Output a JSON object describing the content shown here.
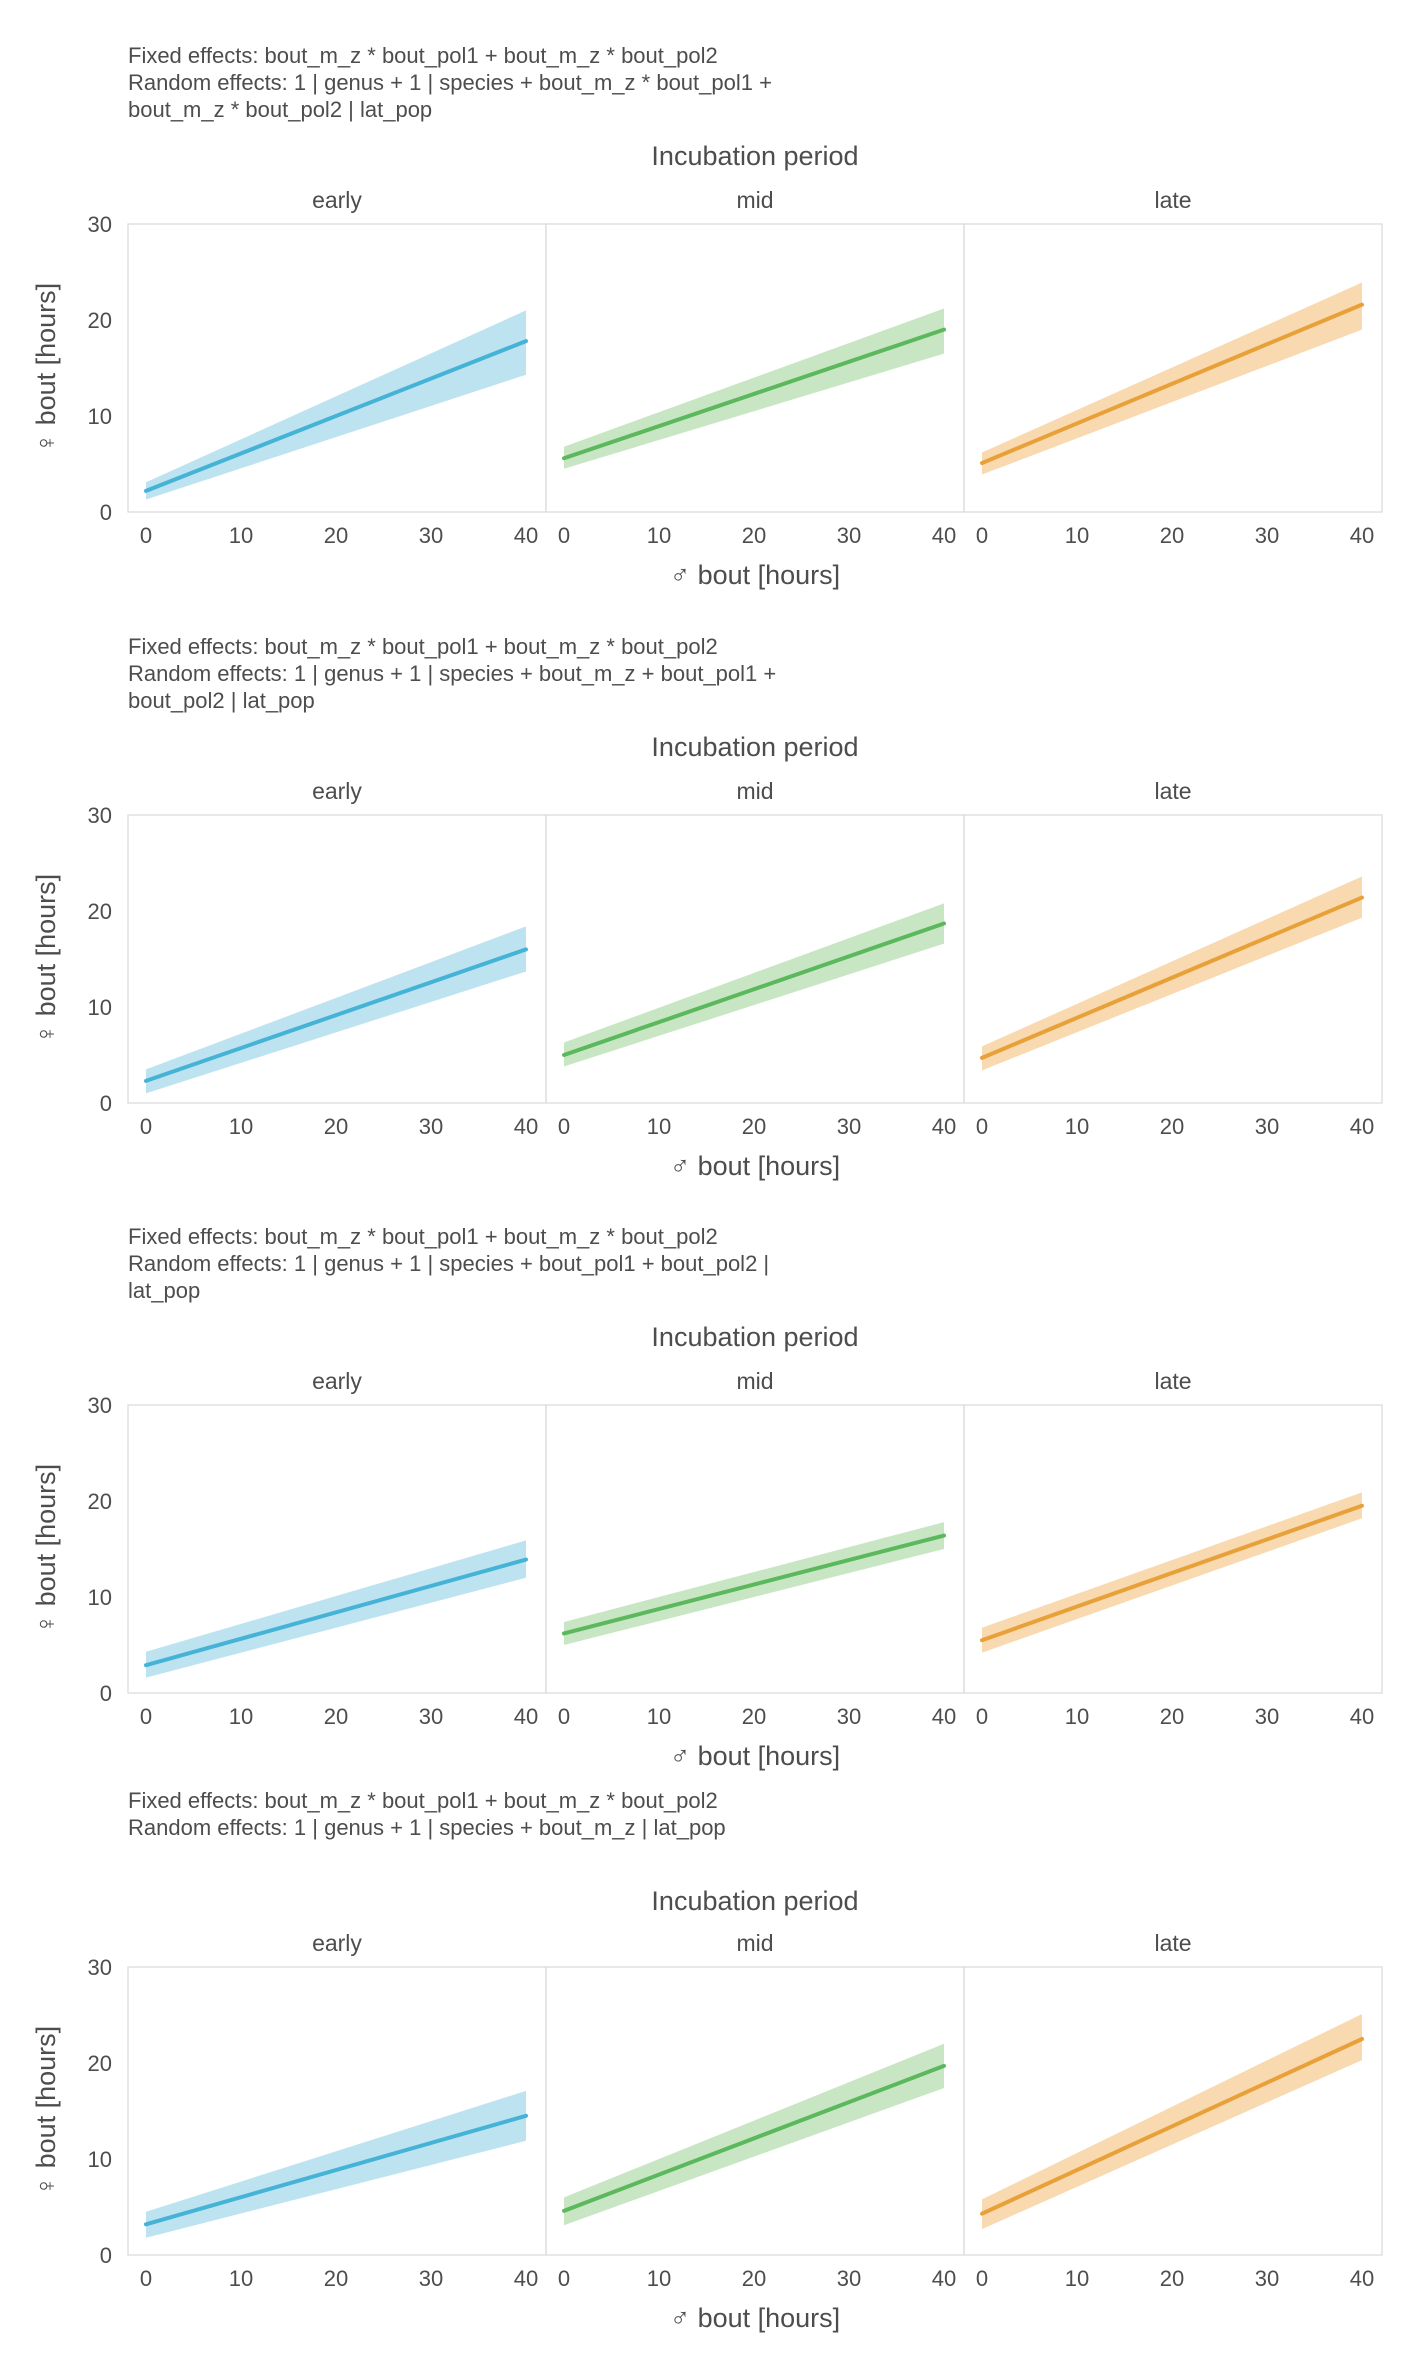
{
  "figure": {
    "colors": {
      "early": "#45b3d6",
      "mid": "#5cb85c",
      "late": "#e8a038",
      "early_band": "#bde3f1",
      "mid_band": "#c9e6c4",
      "late_band": "#f8d9b0",
      "text": "#4d4d4d",
      "grid_border": "#d9d9d9"
    }
  },
  "chart_data": [
    {
      "type": "line",
      "fixed_effects": "Fixed effects: bout_m_z * bout_pol1 + bout_m_z * bout_pol2",
      "random_effects_line1": "Random effects: 1 | genus + 1 | species + bout_m_z * bout_pol1 +",
      "random_effects_line2": "bout_m_z * bout_pol2 | lat_pop",
      "facet_title": "Incubation period",
      "xlabel": "♂ bout [hours]",
      "ylabel": "♀ bout [hours]",
      "xlim": [
        0,
        40
      ],
      "ylim": [
        0,
        30
      ],
      "xticks": [
        "0",
        "10",
        "20",
        "30",
        "40"
      ],
      "yticks": [
        "0",
        "10",
        "20",
        "30"
      ],
      "grid": false,
      "panels": [
        {
          "name": "early",
          "x": [
            0,
            40
          ],
          "y": [
            2.2,
            17.8
          ],
          "lower": [
            1.3,
            14.3
          ],
          "upper": [
            3.1,
            21.0
          ]
        },
        {
          "name": "mid",
          "x": [
            0,
            40
          ],
          "y": [
            5.6,
            19.0
          ],
          "lower": [
            4.5,
            16.5
          ],
          "upper": [
            6.8,
            21.2
          ]
        },
        {
          "name": "late",
          "x": [
            0,
            40
          ],
          "y": [
            5.1,
            21.6
          ],
          "lower": [
            3.9,
            19.0
          ],
          "upper": [
            6.2,
            23.9
          ]
        }
      ]
    },
    {
      "type": "line",
      "fixed_effects": "Fixed effects: bout_m_z * bout_pol1 + bout_m_z * bout_pol2",
      "random_effects_line1": "Random effects: 1 | genus + 1 | species + bout_m_z + bout_pol1 +",
      "random_effects_line2": "bout_pol2 | lat_pop",
      "facet_title": "Incubation period",
      "xlabel": "♂ bout [hours]",
      "ylabel": "♀ bout [hours]",
      "xlim": [
        0,
        40
      ],
      "ylim": [
        0,
        30
      ],
      "xticks": [
        "0",
        "10",
        "20",
        "30",
        "40"
      ],
      "yticks": [
        "0",
        "10",
        "20",
        "30"
      ],
      "grid": false,
      "panels": [
        {
          "name": "early",
          "x": [
            0,
            40
          ],
          "y": [
            2.3,
            16.0
          ],
          "lower": [
            1.0,
            13.7
          ],
          "upper": [
            3.5,
            18.4
          ]
        },
        {
          "name": "mid",
          "x": [
            0,
            40
          ],
          "y": [
            5.0,
            18.7
          ],
          "lower": [
            3.8,
            16.6
          ],
          "upper": [
            6.3,
            20.8
          ]
        },
        {
          "name": "late",
          "x": [
            0,
            40
          ],
          "y": [
            4.7,
            21.4
          ],
          "lower": [
            3.4,
            19.3
          ],
          "upper": [
            5.9,
            23.6
          ]
        }
      ]
    },
    {
      "type": "line",
      "fixed_effects": "Fixed effects: bout_m_z * bout_pol1 + bout_m_z * bout_pol2",
      "random_effects_line1": "Random effects: 1 | genus + 1 | species + bout_pol1 + bout_pol2 |",
      "random_effects_line2": "lat_pop",
      "facet_title": "Incubation period",
      "xlabel": "♂ bout [hours]",
      "ylabel": "♀ bout [hours]",
      "xlim": [
        0,
        40
      ],
      "ylim": [
        0,
        30
      ],
      "xticks": [
        "0",
        "10",
        "20",
        "30",
        "40"
      ],
      "yticks": [
        "0",
        "10",
        "20",
        "30"
      ],
      "grid": false,
      "panels": [
        {
          "name": "early",
          "x": [
            0,
            40
          ],
          "y": [
            2.9,
            13.9
          ],
          "lower": [
            1.6,
            12.0
          ],
          "upper": [
            4.3,
            15.9
          ]
        },
        {
          "name": "mid",
          "x": [
            0,
            40
          ],
          "y": [
            6.2,
            16.4
          ],
          "lower": [
            5.0,
            15.0
          ],
          "upper": [
            7.4,
            17.8
          ]
        },
        {
          "name": "late",
          "x": [
            0,
            40
          ],
          "y": [
            5.5,
            19.5
          ],
          "lower": [
            4.2,
            18.2
          ],
          "upper": [
            6.8,
            20.9
          ]
        }
      ]
    },
    {
      "type": "line",
      "fixed_effects": "Fixed effects: bout_m_z * bout_pol1 + bout_m_z * bout_pol2",
      "random_effects_line1": "Random effects: 1 | genus + 1 | species + bout_m_z | lat_pop",
      "random_effects_line2": "",
      "facet_title": "Incubation period",
      "xlabel": "♂ bout [hours]",
      "ylabel": "♀ bout [hours]",
      "xlim": [
        0,
        40
      ],
      "ylim": [
        0,
        30
      ],
      "xticks": [
        "0",
        "10",
        "20",
        "30",
        "40"
      ],
      "yticks": [
        "0",
        "10",
        "20",
        "30"
      ],
      "grid": false,
      "panels": [
        {
          "name": "early",
          "x": [
            0,
            40
          ],
          "y": [
            3.2,
            14.5
          ],
          "lower": [
            1.8,
            11.9
          ],
          "upper": [
            4.5,
            17.1
          ]
        },
        {
          "name": "mid",
          "x": [
            0,
            40
          ],
          "y": [
            4.6,
            19.7
          ],
          "lower": [
            3.1,
            17.4
          ],
          "upper": [
            6.0,
            22.0
          ]
        },
        {
          "name": "late",
          "x": [
            0,
            40
          ],
          "y": [
            4.3,
            22.5
          ],
          "lower": [
            2.7,
            20.3
          ],
          "upper": [
            5.8,
            25.1
          ]
        }
      ]
    }
  ]
}
